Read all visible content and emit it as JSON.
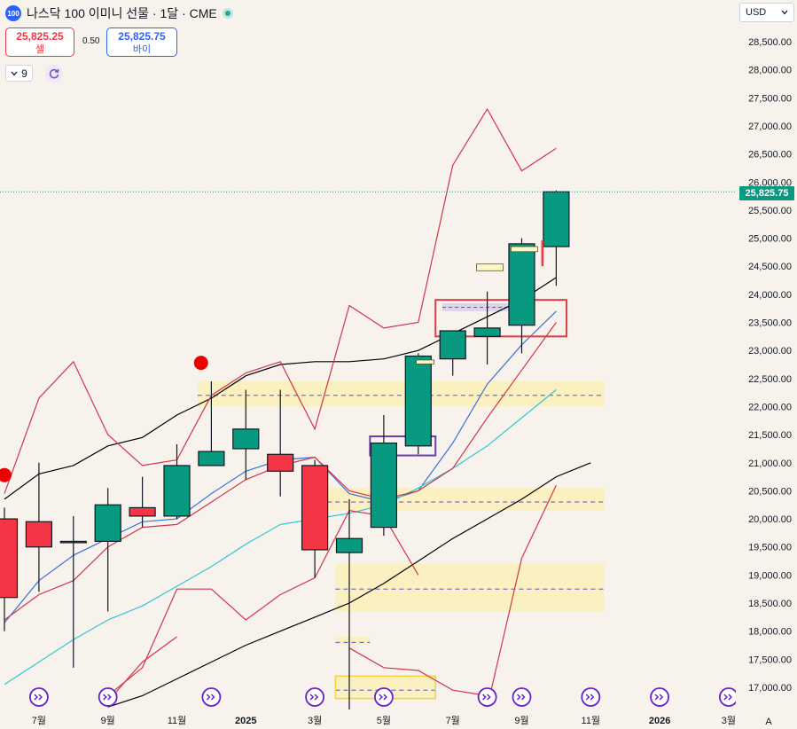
{
  "header": {
    "logo_text": "100",
    "title": "나스닥 100 이미니 선물 · 1달 · CME"
  },
  "trade": {
    "sell_price": "25,825.25",
    "sell_label": "셀",
    "spread": "0.50",
    "buy_price": "25,825.75",
    "buy_label": "바이"
  },
  "indicators": {
    "count": "9"
  },
  "currency": "USD",
  "last_price": "25,825.75",
  "last_price_value": 25825.75,
  "price_axis": {
    "ticks": [
      "28,500.00",
      "28,000.00",
      "27,500.00",
      "27,000.00",
      "26,500.00",
      "26,000.00",
      "25,500.00",
      "25,000.00",
      "24,500.00",
      "24,000.00",
      "23,500.00",
      "23,000.00",
      "22,500.00",
      "22,000.00",
      "21,500.00",
      "21,000.00",
      "20,500.00",
      "20,000.00",
      "19,500.00",
      "19,000.00",
      "18,500.00",
      "18,000.00",
      "17,500.00",
      "17,000.00"
    ],
    "values": [
      28500,
      28000,
      27500,
      27000,
      26500,
      26000,
      25500,
      25000,
      24500,
      24000,
      23500,
      23000,
      22500,
      22000,
      21500,
      21000,
      20500,
      20000,
      19500,
      19000,
      18500,
      18000,
      17500,
      17000
    ]
  },
  "time_axis": {
    "labels": [
      "7월",
      "9월",
      "11월",
      "2025",
      "3월",
      "5월",
      "7월",
      "9월",
      "11월",
      "2026",
      "3월"
    ],
    "bold": [
      false,
      false,
      false,
      true,
      false,
      false,
      false,
      false,
      false,
      true,
      false
    ],
    "index": [
      1,
      3,
      5,
      7,
      9,
      11,
      13,
      15,
      17,
      19,
      21
    ]
  },
  "auto_scale_label": "A",
  "chart_data": {
    "type": "candlestick",
    "interval": "1M",
    "candles": [
      {
        "date": "2024-06",
        "open": 20000,
        "high": 20200,
        "low": 18000,
        "close": 18600
      },
      {
        "date": "2024-07",
        "open": 19950,
        "high": 21000,
        "low": 18700,
        "close": 19500
      },
      {
        "date": "2024-08",
        "open": 19600,
        "high": 20050,
        "low": 17350,
        "close": 19600
      },
      {
        "date": "2024-09",
        "open": 19600,
        "high": 20550,
        "low": 18350,
        "close": 20250
      },
      {
        "date": "2024-10",
        "open": 20200,
        "high": 20750,
        "low": 19850,
        "close": 20050
      },
      {
        "date": "2024-11",
        "open": 20050,
        "high": 21330,
        "low": 20000,
        "close": 20950
      },
      {
        "date": "2024-12",
        "open": 20950,
        "high": 22450,
        "low": 21000,
        "close": 21200
      },
      {
        "date": "2025-01",
        "open": 21250,
        "high": 22300,
        "low": 20700,
        "close": 21600
      },
      {
        "date": "2025-02",
        "open": 21150,
        "high": 22300,
        "low": 20400,
        "close": 20850
      },
      {
        "date": "2025-03",
        "open": 20950,
        "high": 21050,
        "low": 18950,
        "close": 19450
      },
      {
        "date": "2025-04",
        "open": 19400,
        "high": 20350,
        "low": 16550,
        "close": 19650
      },
      {
        "date": "2025-05",
        "open": 19850,
        "high": 21850,
        "low": 19700,
        "close": 21350
      },
      {
        "date": "2025-06",
        "open": 21300,
        "high": 22950,
        "low": 21150,
        "close": 22900
      },
      {
        "date": "2025-07",
        "open": 22850,
        "high": 23250,
        "low": 22550,
        "close": 23350
      },
      {
        "date": "2025-08",
        "open": 23250,
        "high": 24050,
        "low": 22750,
        "close": 23400
      },
      {
        "date": "2025-09",
        "open": 23450,
        "high": 25000,
        "low": 22950,
        "close": 24900
      },
      {
        "date": "2025-10",
        "open": 24850,
        "high": 25850,
        "low": 24150,
        "close": 25825.75
      }
    ],
    "overlays": [
      {
        "color": "#000000",
        "points": [
          [
            0,
            20350
          ],
          [
            1,
            20800
          ],
          [
            2,
            20950
          ],
          [
            3,
            21300
          ],
          [
            4,
            21450
          ],
          [
            5,
            21850
          ],
          [
            6,
            22150
          ],
          [
            7,
            22550
          ],
          [
            8,
            22750
          ],
          [
            9,
            22800
          ],
          [
            10,
            22800
          ],
          [
            11,
            22850
          ],
          [
            12,
            23000
          ],
          [
            13,
            23300
          ],
          [
            14,
            23600
          ],
          [
            15,
            23900
          ],
          [
            16,
            24300
          ]
        ]
      },
      {
        "color": "#000000",
        "points": [
          [
            3,
            16650
          ],
          [
            4,
            16850
          ],
          [
            5,
            17150
          ],
          [
            6,
            17450
          ],
          [
            7,
            17750
          ],
          [
            8,
            18000
          ],
          [
            9,
            18250
          ],
          [
            10,
            18500
          ],
          [
            11,
            18850
          ],
          [
            12,
            19250
          ],
          [
            13,
            19650
          ],
          [
            14,
            20000
          ],
          [
            15,
            20350
          ],
          [
            16,
            20750
          ],
          [
            17,
            21000
          ]
        ]
      },
      {
        "color": "#3b6fd8",
        "points": [
          [
            0,
            18150
          ],
          [
            1,
            18900
          ],
          [
            2,
            19350
          ],
          [
            3,
            19650
          ],
          [
            4,
            19950
          ],
          [
            5,
            20000
          ],
          [
            6,
            20450
          ],
          [
            7,
            20850
          ],
          [
            8,
            21050
          ],
          [
            9,
            21100
          ],
          [
            10,
            20450
          ],
          [
            11,
            20300
          ],
          [
            12,
            20500
          ],
          [
            13,
            21350
          ],
          [
            14,
            22400
          ],
          [
            15,
            23100
          ],
          [
            16,
            23700
          ]
        ]
      },
      {
        "color": "#2fc6d2",
        "points": [
          [
            0,
            17050
          ],
          [
            1,
            17450
          ],
          [
            2,
            17850
          ],
          [
            3,
            18200
          ],
          [
            4,
            18450
          ],
          [
            5,
            18800
          ],
          [
            6,
            19150
          ],
          [
            7,
            19550
          ],
          [
            8,
            19900
          ],
          [
            9,
            20000
          ],
          [
            10,
            20100
          ],
          [
            11,
            20250
          ],
          [
            12,
            20550
          ],
          [
            13,
            20900
          ],
          [
            14,
            21300
          ],
          [
            15,
            21800
          ],
          [
            16,
            22300
          ]
        ]
      },
      {
        "color": "#d2344b",
        "points": [
          [
            0,
            18200
          ],
          [
            1,
            18650
          ],
          [
            2,
            18900
          ],
          [
            3,
            19500
          ],
          [
            4,
            19850
          ],
          [
            5,
            19900
          ],
          [
            6,
            20300
          ],
          [
            7,
            20700
          ],
          [
            8,
            20950
          ],
          [
            9,
            21100
          ],
          [
            10,
            20500
          ],
          [
            11,
            20350
          ],
          [
            12,
            20500
          ],
          [
            13,
            20900
          ],
          [
            14,
            21800
          ],
          [
            15,
            22650
          ],
          [
            16,
            23500
          ]
        ]
      },
      {
        "color": "#d2344b",
        "points": [
          [
            0,
            20450
          ],
          [
            1,
            22150
          ],
          [
            2,
            22800
          ],
          [
            3,
            21500
          ],
          [
            4,
            20950
          ],
          [
            5,
            21050
          ],
          [
            6,
            22200
          ],
          [
            7,
            22600
          ],
          [
            8,
            22800
          ],
          [
            9,
            21600
          ],
          [
            10,
            23800
          ],
          [
            11,
            23400
          ],
          [
            12,
            23500
          ],
          [
            13,
            26300
          ],
          [
            14,
            27300
          ],
          [
            15,
            26200
          ],
          [
            16,
            26600
          ]
        ]
      },
      {
        "color": "#d2344b",
        "points": [
          [
            3,
            16850
          ],
          [
            4,
            17350
          ],
          [
            5,
            18750
          ],
          [
            6,
            18750
          ],
          [
            7,
            18200
          ],
          [
            8,
            18650
          ],
          [
            9,
            18950
          ],
          [
            10,
            20150
          ],
          [
            11,
            20050
          ],
          [
            12,
            19000
          ]
        ]
      },
      {
        "color": "#d2344b",
        "points": [
          [
            10,
            17700
          ],
          [
            11,
            17350
          ],
          [
            12,
            17300
          ],
          [
            13,
            16950
          ],
          [
            14,
            16850
          ]
        ]
      },
      {
        "color": "#d2344b",
        "points": [
          [
            3,
            16750
          ],
          [
            4,
            17450
          ],
          [
            5,
            17900
          ]
        ]
      },
      {
        "color": "#d2344b",
        "points": [
          [
            14,
            16650
          ],
          [
            15,
            19300
          ],
          [
            16,
            20600
          ]
        ]
      }
    ],
    "zones": [
      {
        "from_index": 5.6,
        "to_index": 17.4,
        "low": 22000,
        "high": 22450,
        "level": 22200
      },
      {
        "from_index": 8.9,
        "to_index": 17.4,
        "low": 20150,
        "high": 20550,
        "level": 20300
      },
      {
        "from_index": 9.6,
        "to_index": 17.4,
        "low": 18350,
        "high": 19200,
        "level": 18750
      },
      {
        "from_index": 9.6,
        "to_index": 10.6,
        "low": 17750,
        "high": 17900,
        "level": 17800
      },
      {
        "from_index": 9.6,
        "to_index": 12.5,
        "low": 16800,
        "high": 17200,
        "level": 16950
      }
    ],
    "boxes": [
      {
        "from_index": 12.5,
        "to_index": 16.3,
        "low": 23250,
        "high": 23900,
        "color": "#e03a46"
      },
      {
        "from_index": 10.6,
        "to_index": 12.5,
        "low": 21130,
        "high": 21470,
        "color": "#6a3fb0"
      }
    ],
    "markers": [
      {
        "index": 5.7,
        "price": 22780,
        "color": "#ee0000"
      },
      {
        "index": 0,
        "price": 20780,
        "color": "#ee0000"
      }
    ],
    "event_icons": [
      1,
      3,
      6,
      9,
      11,
      14,
      15,
      17,
      19,
      21
    ],
    "ylim": [
      16650,
      28750
    ]
  }
}
